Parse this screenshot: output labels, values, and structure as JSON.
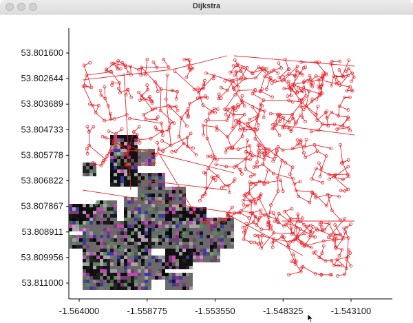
{
  "window": {
    "title": "Dijkstra"
  },
  "chart_data": {
    "type": "scatter",
    "x_ticks": [
      "-1.564000",
      "-1.558775",
      "-1.553550",
      "-1.548325",
      "-1.543100"
    ],
    "y_ticks": [
      "53.801600",
      "53.802644",
      "53.803689",
      "53.804733",
      "53.805778",
      "53.806822",
      "53.807867",
      "53.808911",
      "53.809956",
      "53.811000"
    ],
    "xlim": [
      -1.564,
      -1.5431
    ],
    "ylim": [
      53.8016,
      53.811
    ],
    "y_inverted": true,
    "grid": false,
    "series_color": "#e8222a",
    "overlay": "tiled noise imagery over lower-left region"
  }
}
